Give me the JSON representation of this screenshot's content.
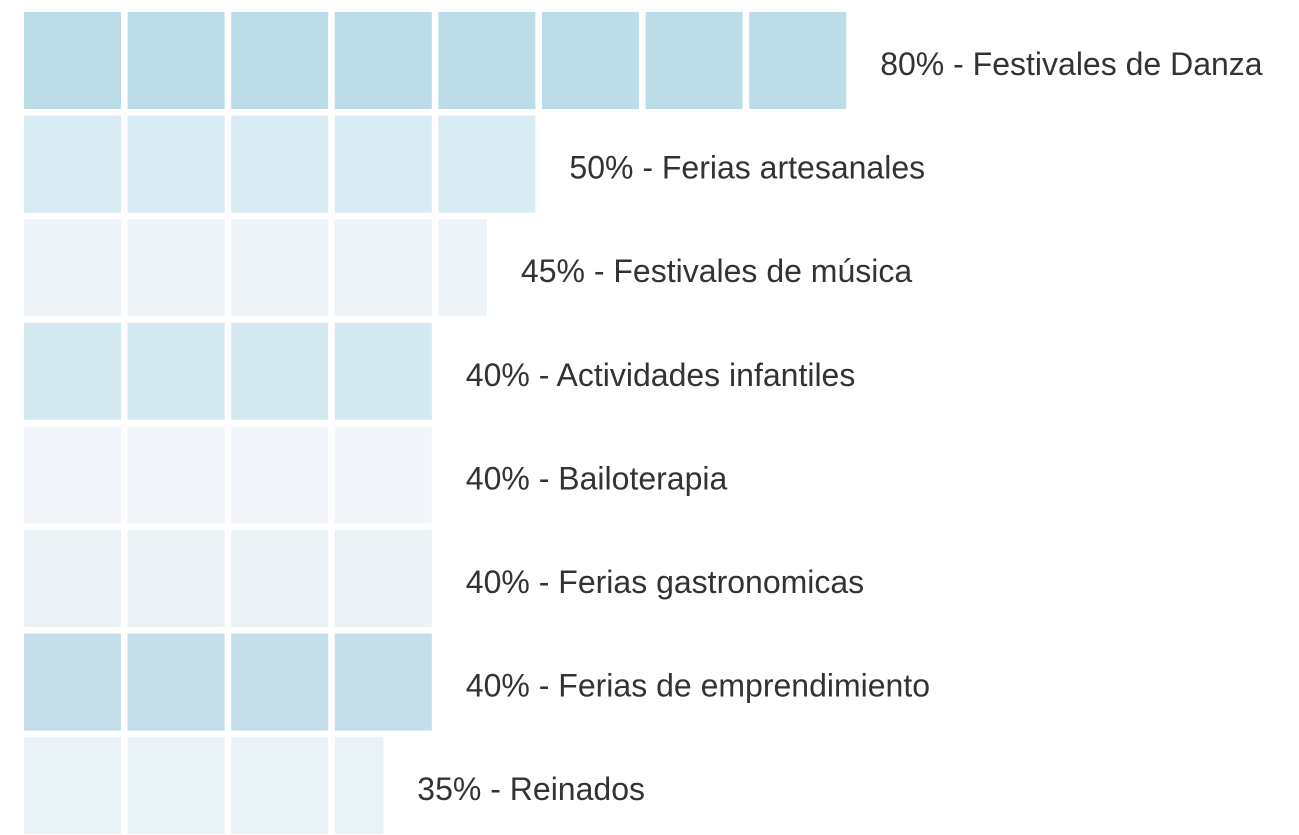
{
  "chart_data": {
    "type": "bar",
    "categories": [
      "80% - Festivales de Danza",
      "50% - Ferias artesanales",
      "45% - Festivales de música",
      "40% - Actividades infantiles",
      "40% - Bailoterapia",
      "40% - Ferias gastronomicas",
      "40% - Ferias de emprendimiento",
      "35% - Reinados"
    ],
    "values": [
      80,
      50,
      45,
      40,
      40,
      40,
      40,
      35
    ],
    "colors": [
      "#bcdce8",
      "#d9ebf3",
      "#edf3f6",
      "#d5e9f1",
      "#f2f6fa",
      "#ebf2f6",
      "#c6deea",
      "#e8f2f7"
    ]
  }
}
